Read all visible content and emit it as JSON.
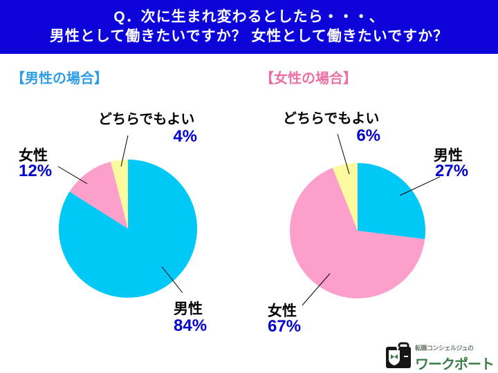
{
  "header": {
    "line1": "Q．次に生まれ変わるとしたら・・・、",
    "line2": "男性として働きたいですか？ 女性として働きたいですか？"
  },
  "colors": {
    "header_bg": "#0d04da",
    "header_text": "#ffffff",
    "male": "#00c9f7",
    "female": "#fc9fcb",
    "either": "#fbfa9e",
    "pct_text": "#0202cc",
    "label_text": "#000000",
    "left_title": "#2e9ee8",
    "right_title": "#ee6fa3",
    "logo_green": "#3a7c45",
    "logo_black": "#161616",
    "logo_gray": "#6e7b70"
  },
  "chart_data": [
    {
      "type": "pie",
      "group_title": "【男性の場合】",
      "start_angle_deg": 0,
      "direction": "clockwise",
      "slices": [
        {
          "label": "男性",
          "pct": 84,
          "pct_label": "84%",
          "color_key": "male"
        },
        {
          "label": "女性",
          "pct": 12,
          "pct_label": "12%",
          "color_key": "female"
        },
        {
          "label": "どちらでもよい",
          "pct": 4,
          "pct_label": "4%",
          "color_key": "either"
        }
      ]
    },
    {
      "type": "pie",
      "group_title": "【女性の場合】",
      "start_angle_deg": 0,
      "direction": "clockwise",
      "slices": [
        {
          "label": "男性",
          "pct": 27,
          "pct_label": "27%",
          "color_key": "male"
        },
        {
          "label": "女性",
          "pct": 67,
          "pct_label": "67%",
          "color_key": "female"
        },
        {
          "label": "どちらでもよい",
          "pct": 6,
          "pct_label": "6%",
          "color_key": "either"
        }
      ]
    }
  ],
  "logo": {
    "tagline": "転職コンシェルジュの",
    "brand": "ワークポート"
  }
}
